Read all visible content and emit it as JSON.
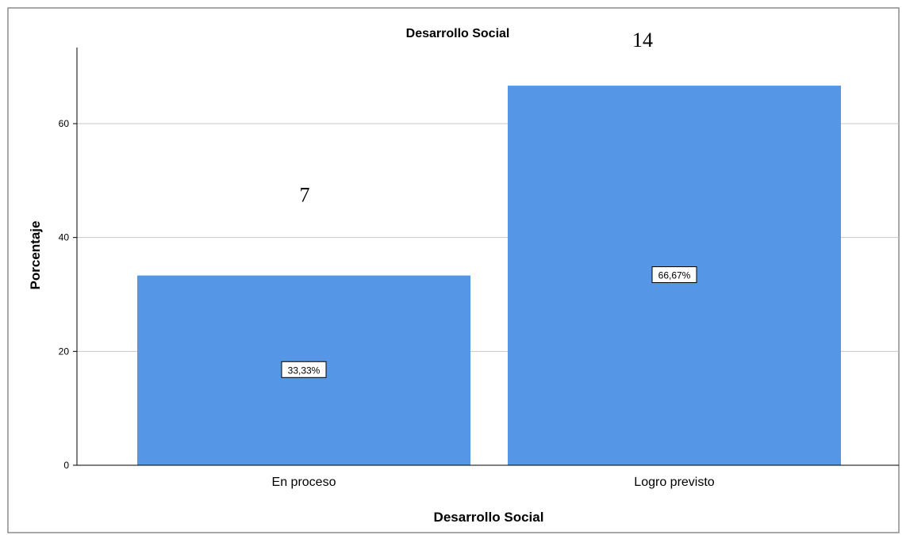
{
  "chart_data": {
    "type": "bar",
    "title": "Desarrollo Social",
    "xlabel": "Desarrollo Social",
    "ylabel": "Porcentaje",
    "categories": [
      "En proceso",
      "Logro previsto"
    ],
    "values": [
      33.33,
      66.67
    ],
    "bar_labels": [
      "33,33%",
      "66,67%"
    ],
    "annotations": [
      "7",
      "14"
    ],
    "yticks": [
      0,
      20,
      40,
      60
    ],
    "ylim": [
      0,
      72
    ],
    "grid": true,
    "bar_color": "#5596e6"
  }
}
